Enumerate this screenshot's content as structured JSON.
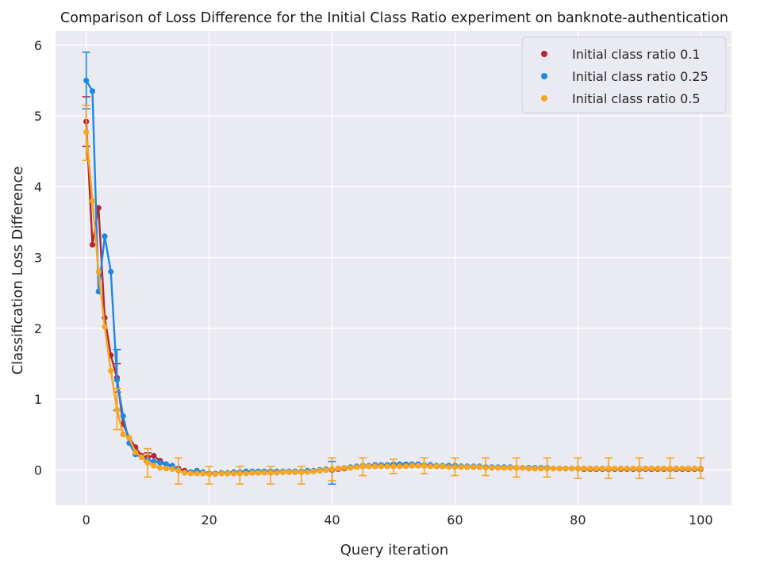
{
  "chart_data": {
    "type": "line",
    "title": "Comparison of Loss Difference for the Initial Class Ratio experiment on banknote-authentication",
    "xlabel": "Query iteration",
    "ylabel": "Classification Loss Difference",
    "xlim": [
      -5,
      105
    ],
    "ylim": [
      -0.5,
      6.2
    ],
    "xticks": [
      0,
      20,
      40,
      60,
      80,
      100
    ],
    "yticks": [
      0,
      1,
      2,
      3,
      4,
      5,
      6
    ],
    "grid": true,
    "legend_position": "top-right",
    "background": "#eaeaf2",
    "error_bars": "shown every 5 iterations",
    "series": [
      {
        "name": "Initial class ratio 0.1",
        "color": "#b5262f",
        "x": [
          0,
          1,
          2,
          3,
          4,
          5,
          6,
          7,
          8,
          9,
          10,
          11,
          12,
          13,
          14,
          15,
          16,
          17,
          18,
          19,
          20,
          21,
          22,
          23,
          24,
          25,
          26,
          27,
          28,
          29,
          30,
          31,
          32,
          33,
          34,
          35,
          36,
          37,
          38,
          39,
          40,
          41,
          42,
          43,
          44,
          45,
          46,
          47,
          48,
          49,
          50,
          51,
          52,
          53,
          54,
          55,
          56,
          57,
          58,
          59,
          60,
          61,
          62,
          63,
          64,
          65,
          66,
          67,
          68,
          69,
          70,
          71,
          72,
          73,
          74,
          75,
          76,
          77,
          78,
          79,
          80,
          81,
          82,
          83,
          84,
          85,
          86,
          87,
          88,
          89,
          90,
          91,
          92,
          93,
          94,
          95,
          96,
          97,
          98,
          99,
          100
        ],
        "y": [
          4.92,
          3.18,
          3.7,
          2.15,
          1.62,
          1.3,
          0.65,
          0.45,
          0.32,
          0.2,
          0.18,
          0.2,
          0.13,
          0.08,
          0.04,
          0.02,
          -0.01,
          -0.03,
          -0.04,
          -0.05,
          -0.05,
          -0.05,
          -0.05,
          -0.05,
          -0.05,
          -0.05,
          -0.04,
          -0.04,
          -0.04,
          -0.04,
          -0.04,
          -0.04,
          -0.03,
          -0.03,
          -0.03,
          -0.03,
          -0.02,
          -0.02,
          -0.01,
          0.0,
          0.0,
          0.01,
          0.02,
          0.03,
          0.04,
          0.05,
          0.05,
          0.05,
          0.06,
          0.06,
          0.06,
          0.06,
          0.06,
          0.06,
          0.06,
          0.06,
          0.06,
          0.05,
          0.05,
          0.05,
          0.05,
          0.05,
          0.04,
          0.04,
          0.04,
          0.04,
          0.03,
          0.03,
          0.03,
          0.03,
          0.03,
          0.03,
          0.02,
          0.02,
          0.02,
          0.02,
          0.02,
          0.02,
          0.02,
          0.02,
          0.02,
          0.01,
          0.01,
          0.01,
          0.01,
          0.01,
          0.01,
          0.01,
          0.01,
          0.01,
          0.01,
          0.01,
          0.01,
          0.01,
          0.01,
          0.01,
          0.01,
          0.01,
          0.01,
          0.01,
          0.01
        ],
        "errors": [
          {
            "x": 0,
            "lo": 4.57,
            "hi": 5.27
          },
          {
            "x": 5,
            "lo": 1.1,
            "hi": 1.5
          },
          {
            "x": 10,
            "lo": 0.12,
            "hi": 0.24
          }
        ]
      },
      {
        "name": "Initial class ratio 0.25",
        "color": "#1e88e5",
        "x": [
          0,
          1,
          2,
          3,
          4,
          5,
          6,
          7,
          8,
          9,
          10,
          11,
          12,
          13,
          14,
          15,
          16,
          17,
          18,
          19,
          20,
          21,
          22,
          23,
          24,
          25,
          26,
          27,
          28,
          29,
          30,
          31,
          32,
          33,
          34,
          35,
          36,
          37,
          38,
          39,
          40,
          41,
          42,
          43,
          44,
          45,
          46,
          47,
          48,
          49,
          50,
          51,
          52,
          53,
          54,
          55,
          56,
          57,
          58,
          59,
          60,
          61,
          62,
          63,
          64,
          65,
          66,
          67,
          68,
          69,
          70,
          71,
          72,
          73,
          74,
          75,
          76,
          77,
          78,
          79,
          80,
          81,
          82,
          83,
          84,
          85,
          86,
          87,
          88,
          89,
          90,
          91,
          92,
          93,
          94,
          95,
          96,
          97,
          98,
          99,
          100
        ],
        "y": [
          5.5,
          5.35,
          2.52,
          3.3,
          2.8,
          1.27,
          0.76,
          0.38,
          0.22,
          0.18,
          0.14,
          0.12,
          0.1,
          0.08,
          0.06,
          0.0,
          -0.04,
          -0.03,
          -0.01,
          -0.03,
          -0.05,
          -0.05,
          -0.04,
          -0.04,
          -0.03,
          -0.03,
          -0.02,
          -0.02,
          -0.02,
          -0.02,
          -0.02,
          -0.02,
          -0.02,
          -0.02,
          -0.02,
          -0.02,
          -0.01,
          -0.01,
          0.0,
          0.01,
          0.01,
          0.02,
          0.03,
          0.04,
          0.05,
          0.06,
          0.06,
          0.07,
          0.07,
          0.07,
          0.08,
          0.08,
          0.08,
          0.08,
          0.08,
          0.07,
          0.07,
          0.06,
          0.06,
          0.06,
          0.06,
          0.05,
          0.05,
          0.05,
          0.05,
          0.04,
          0.04,
          0.04,
          0.04,
          0.04,
          0.03,
          0.03,
          0.03,
          0.03,
          0.03,
          0.03,
          0.02,
          0.02,
          0.02,
          0.02,
          0.02,
          0.02,
          0.02,
          0.02,
          0.02,
          0.02,
          0.02,
          0.02,
          0.02,
          0.02,
          0.02,
          0.02,
          0.02,
          0.02,
          0.02,
          0.02,
          0.02,
          0.02,
          0.02,
          0.02,
          0.02
        ],
        "errors": [
          {
            "x": 0,
            "lo": 5.1,
            "hi": 5.9
          },
          {
            "x": 5,
            "lo": 0.84,
            "hi": 1.7
          },
          {
            "x": 40,
            "lo": -0.2,
            "hi": 0.12
          }
        ]
      },
      {
        "name": "Initial class ratio 0.5",
        "color": "#f5a623",
        "x": [
          0,
          1,
          2,
          3,
          4,
          5,
          6,
          7,
          8,
          9,
          10,
          11,
          12,
          13,
          14,
          15,
          16,
          17,
          18,
          19,
          20,
          21,
          22,
          23,
          24,
          25,
          26,
          27,
          28,
          29,
          30,
          31,
          32,
          33,
          34,
          35,
          36,
          37,
          38,
          39,
          40,
          41,
          42,
          43,
          44,
          45,
          46,
          47,
          48,
          49,
          50,
          51,
          52,
          53,
          54,
          55,
          56,
          57,
          58,
          59,
          60,
          61,
          62,
          63,
          64,
          65,
          66,
          67,
          68,
          69,
          70,
          71,
          72,
          73,
          74,
          75,
          76,
          77,
          78,
          79,
          80,
          81,
          82,
          83,
          84,
          85,
          86,
          87,
          88,
          89,
          90,
          91,
          92,
          93,
          94,
          95,
          96,
          97,
          98,
          99,
          100
        ],
        "y": [
          4.77,
          3.8,
          2.8,
          2.02,
          1.4,
          0.85,
          0.5,
          0.45,
          0.25,
          0.18,
          0.1,
          0.06,
          0.03,
          0.02,
          0.01,
          -0.01,
          -0.04,
          -0.05,
          -0.05,
          -0.05,
          -0.06,
          -0.06,
          -0.05,
          -0.05,
          -0.05,
          -0.05,
          -0.05,
          -0.04,
          -0.04,
          -0.04,
          -0.04,
          -0.04,
          -0.03,
          -0.03,
          -0.03,
          -0.03,
          -0.03,
          -0.02,
          -0.01,
          0.0,
          0.01,
          0.02,
          0.03,
          0.03,
          0.04,
          0.05,
          0.05,
          0.05,
          0.05,
          0.05,
          0.05,
          0.05,
          0.05,
          0.06,
          0.06,
          0.06,
          0.05,
          0.05,
          0.05,
          0.04,
          0.04,
          0.04,
          0.04,
          0.04,
          0.04,
          0.03,
          0.03,
          0.03,
          0.03,
          0.03,
          0.03,
          0.03,
          0.02,
          0.02,
          0.02,
          0.02,
          0.02,
          0.02,
          0.02,
          0.02,
          0.02,
          0.02,
          0.02,
          0.02,
          0.02,
          0.02,
          0.02,
          0.02,
          0.02,
          0.02,
          0.02,
          0.02,
          0.02,
          0.02,
          0.02,
          0.02,
          0.02,
          0.02,
          0.02,
          0.02,
          0.02
        ],
        "errors": [
          {
            "x": 0,
            "lo": 4.37,
            "hi": 5.15
          },
          {
            "x": 5,
            "lo": 0.57,
            "hi": 1.15
          },
          {
            "x": 10,
            "lo": -0.1,
            "hi": 0.3
          },
          {
            "x": 15,
            "lo": -0.2,
            "hi": 0.17
          },
          {
            "x": 20,
            "lo": -0.2,
            "hi": 0.05
          },
          {
            "x": 25,
            "lo": -0.2,
            "hi": 0.05
          },
          {
            "x": 30,
            "lo": -0.2,
            "hi": 0.05
          },
          {
            "x": 35,
            "lo": -0.2,
            "hi": 0.05
          },
          {
            "x": 40,
            "lo": -0.15,
            "hi": 0.17
          },
          {
            "x": 45,
            "lo": -0.08,
            "hi": 0.17
          },
          {
            "x": 50,
            "lo": -0.05,
            "hi": 0.15
          },
          {
            "x": 55,
            "lo": -0.05,
            "hi": 0.17
          },
          {
            "x": 60,
            "lo": -0.08,
            "hi": 0.17
          },
          {
            "x": 65,
            "lo": -0.08,
            "hi": 0.17
          },
          {
            "x": 70,
            "lo": -0.1,
            "hi": 0.17
          },
          {
            "x": 75,
            "lo": -0.1,
            "hi": 0.17
          },
          {
            "x": 80,
            "lo": -0.12,
            "hi": 0.17
          },
          {
            "x": 85,
            "lo": -0.12,
            "hi": 0.17
          },
          {
            "x": 90,
            "lo": -0.12,
            "hi": 0.17
          },
          {
            "x": 95,
            "lo": -0.12,
            "hi": 0.17
          },
          {
            "x": 100,
            "lo": -0.12,
            "hi": 0.17
          }
        ]
      }
    ]
  }
}
